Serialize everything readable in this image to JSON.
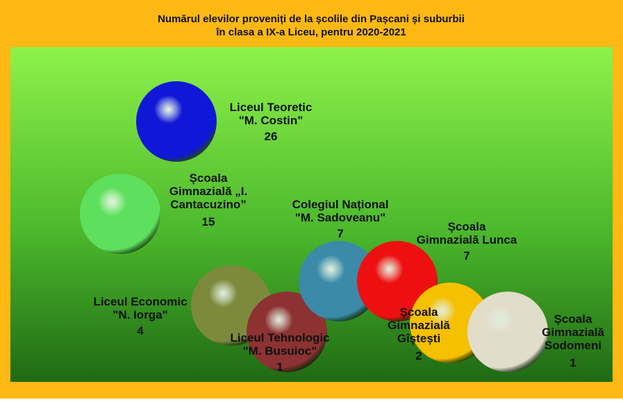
{
  "chart_data": {
    "type": "bubble",
    "title": "Numărul elevilor proveniți de la școlile din Pașcani și suburbii\nîn clasa a IX-a Liceu, pentru 2020-2021",
    "categories": [
      "Liceul Teoretic\n\"M. Costin\"",
      "Școala\nGimnazială „I.\nCantacuzino”",
      "Liceul Economic\n\"N. Iorga\"",
      "Liceul Tehnologic\n\"M. Busuioc\"",
      "Colegiul Național\n\"M. Sadoveanu\"",
      "Școala\nGimnazială Lunca",
      "Școala\nGimnazială\nGîștești",
      "Școala\nGimnazială\nSodomeni"
    ],
    "values": [
      26,
      15,
      4,
      1,
      7,
      7,
      2,
      1
    ],
    "colors": [
      "#1018d8",
      "#5ee05e",
      "#7d8a3c",
      "#8c3232",
      "#3a8aa8",
      "#ee1010",
      "#f5c000",
      "#e2dccb"
    ]
  }
}
